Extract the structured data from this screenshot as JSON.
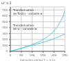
{
  "chart_data": {
    "type": "line",
    "xlabel": "Sampling period T = 0.1s",
    "ylabel": "ω' s-1",
    "annotations": [
      "Transformation\nde Tustin - variable w",
      "Transformation\nde w - variable w"
    ],
    "x": [
      0,
      20,
      40,
      60,
      80,
      100,
      120,
      140,
      160,
      180,
      200,
      220,
      240,
      250
    ],
    "series": [
      {
        "color": "#60c8d8",
        "values": [
          0,
          20.1,
          40.8,
          62.8,
          86.5,
          113.0,
          143.2,
          178.5,
          221.0,
          274.0,
          342.0,
          436.0,
          576.0,
          680.0
        ]
      },
      {
        "color": "#60c8d8",
        "values": [
          0,
          20.0,
          40.0,
          60.0,
          80.0,
          100.0,
          120.5,
          141.5,
          163.5,
          187.0,
          213.5,
          243.5,
          277.0,
          296.0
        ]
      }
    ],
    "xlim": [
      0,
      250
    ],
    "ylim": [
      0,
      750
    ],
    "xticks": [
      0,
      50,
      100,
      150,
      200,
      250
    ],
    "yticks": [
      0,
      100,
      200,
      300,
      400,
      500,
      600,
      700
    ],
    "grid": true
  }
}
